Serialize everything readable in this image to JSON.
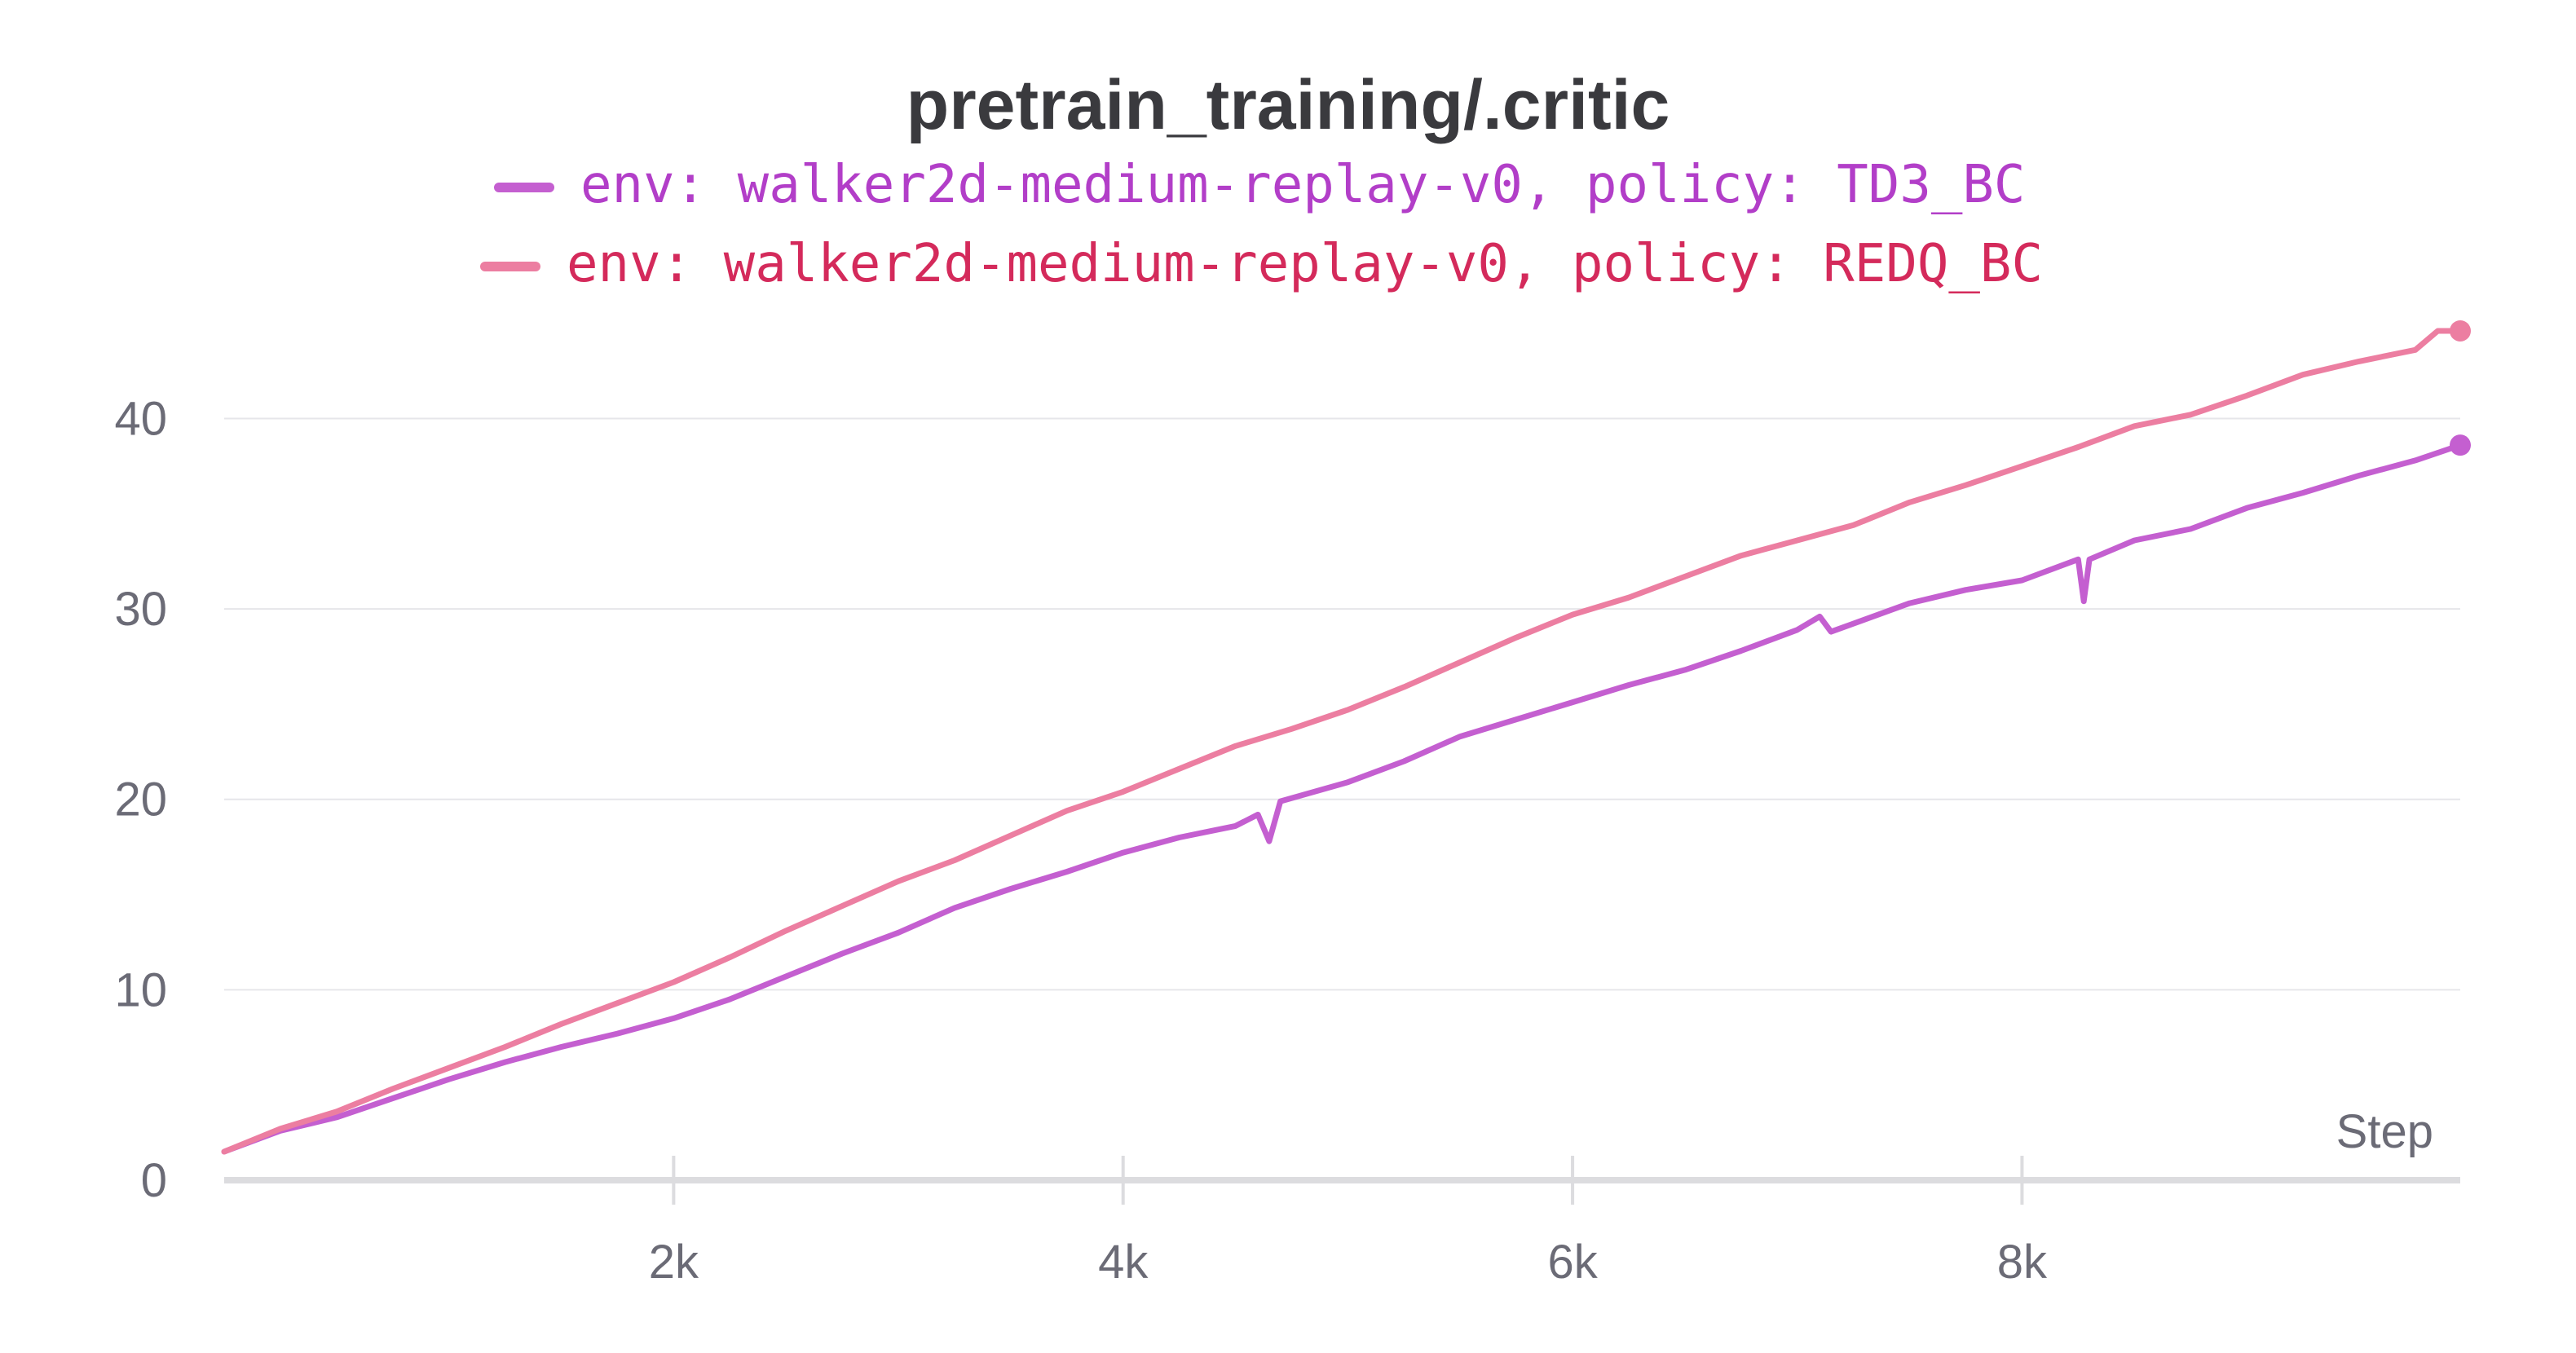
{
  "chart_data": {
    "type": "line",
    "title": "pretrain_training/.critic",
    "xlabel": "Step",
    "ylabel": "",
    "xlim": [
      0,
      9950
    ],
    "ylim": [
      0,
      44
    ],
    "x_ticks": [
      {
        "value": 2000,
        "label": "2k"
      },
      {
        "value": 4000,
        "label": "4k"
      },
      {
        "value": 6000,
        "label": "6k"
      },
      {
        "value": 8000,
        "label": "8k"
      }
    ],
    "y_ticks": [
      {
        "value": 0,
        "label": "0"
      },
      {
        "value": 10,
        "label": "10"
      },
      {
        "value": 20,
        "label": "20"
      },
      {
        "value": 30,
        "label": "30"
      },
      {
        "value": 40,
        "label": "40"
      }
    ],
    "grid": true,
    "legend_position": "top-center",
    "series": [
      {
        "name": "env: walker2d-medium-replay-v0, policy: TD3_BC",
        "color": "#c45fd0",
        "text_color": "#b23ec8",
        "x": [
          0,
          250,
          500,
          750,
          1000,
          1250,
          1500,
          1750,
          2000,
          2250,
          2500,
          2750,
          3000,
          3250,
          3500,
          3750,
          4000,
          4250,
          4500,
          4600,
          4650,
          4700,
          5000,
          5250,
          5500,
          5750,
          6000,
          6250,
          6500,
          6750,
          7000,
          7100,
          7150,
          7500,
          7750,
          8000,
          8250,
          8275,
          8300,
          8500,
          8750,
          9000,
          9250,
          9500,
          9750,
          9950
        ],
        "y": [
          1.5,
          2.6,
          3.3,
          4.3,
          5.3,
          6.2,
          7.0,
          7.7,
          8.5,
          9.5,
          10.7,
          11.9,
          13.0,
          14.3,
          15.3,
          16.2,
          17.2,
          18.0,
          18.6,
          19.2,
          17.8,
          19.9,
          20.9,
          22.0,
          23.3,
          24.2,
          25.1,
          26.0,
          26.8,
          27.8,
          28.9,
          29.6,
          28.8,
          30.3,
          31.0,
          31.5,
          32.6,
          30.4,
          32.6,
          33.6,
          34.2,
          35.3,
          36.1,
          37.0,
          37.8,
          38.6
        ]
      },
      {
        "name": "env: walker2d-medium-replay-v0, policy: REDQ_BC",
        "color": "#ec7ea1",
        "text_color": "#d42a5b",
        "x": [
          0,
          250,
          500,
          750,
          1000,
          1250,
          1500,
          1750,
          2000,
          2250,
          2500,
          2750,
          3000,
          3250,
          3500,
          3750,
          4000,
          4250,
          4500,
          4750,
          5000,
          5250,
          5500,
          5750,
          6000,
          6250,
          6500,
          6750,
          7000,
          7250,
          7500,
          7750,
          8000,
          8250,
          8500,
          8750,
          9000,
          9250,
          9500,
          9750,
          9850,
          9950
        ],
        "y": [
          1.5,
          2.7,
          3.6,
          4.8,
          5.9,
          7.0,
          8.2,
          9.3,
          10.4,
          11.7,
          13.1,
          14.4,
          15.7,
          16.8,
          18.1,
          19.4,
          20.4,
          21.6,
          22.8,
          23.7,
          24.7,
          25.9,
          27.2,
          28.5,
          29.7,
          30.6,
          31.7,
          32.8,
          33.6,
          34.4,
          35.6,
          36.5,
          37.5,
          38.5,
          39.6,
          40.2,
          41.2,
          42.3,
          43.0,
          43.6,
          44.6,
          44.6
        ]
      }
    ]
  }
}
